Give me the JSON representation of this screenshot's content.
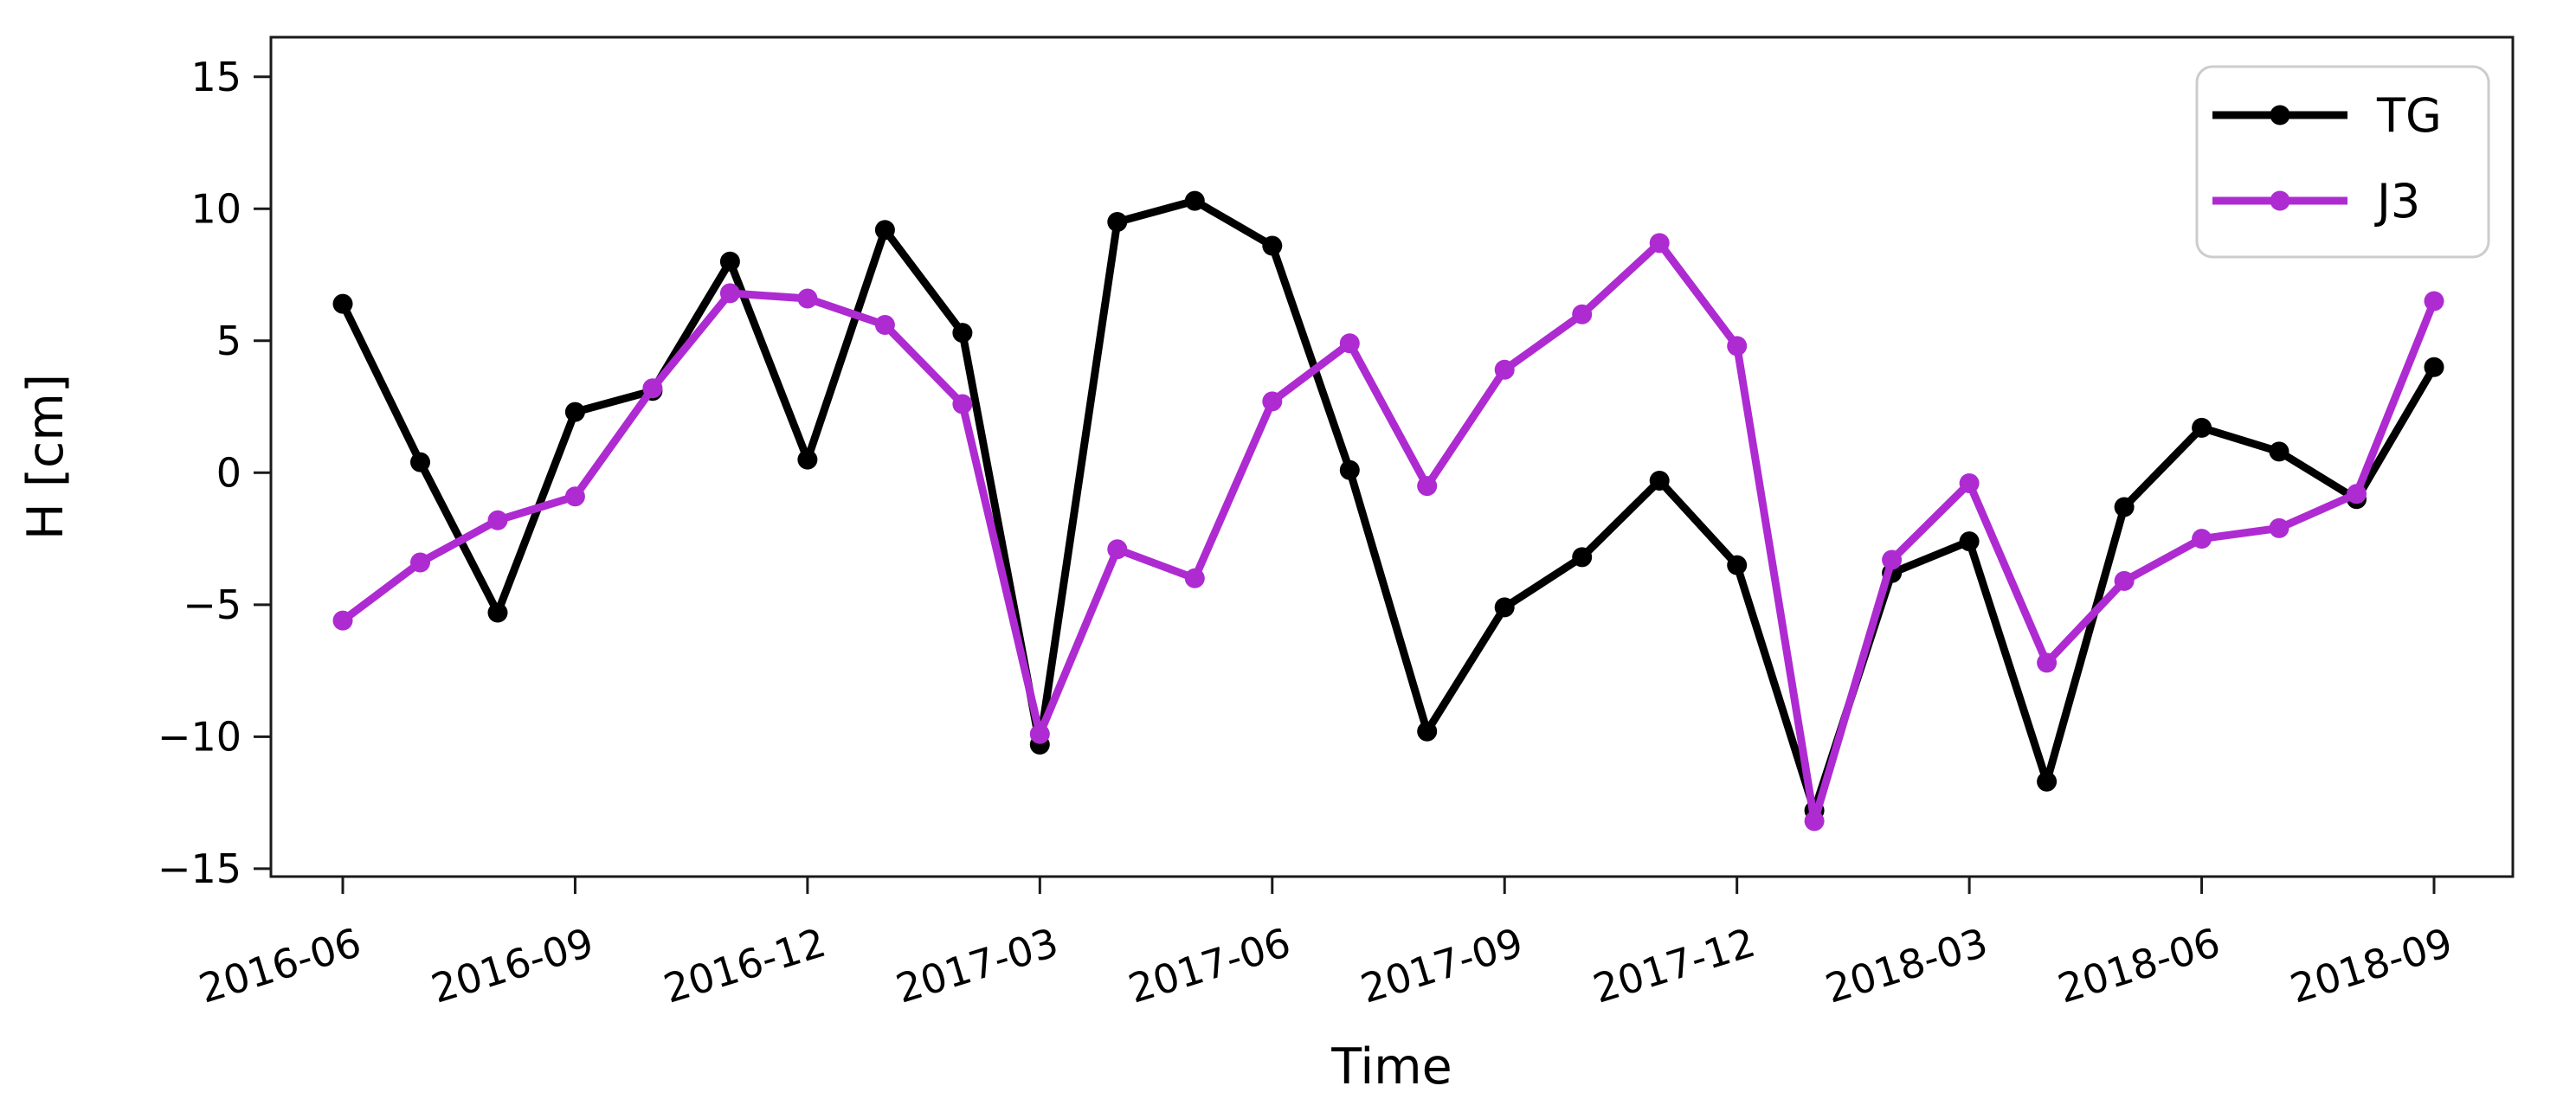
{
  "chart_data": {
    "type": "line",
    "title": "",
    "xlabel": "Time",
    "ylabel": "H [cm]",
    "grid": false,
    "legend_position": "upper right",
    "x": [
      "2016-06",
      "2016-07",
      "2016-08",
      "2016-09",
      "2016-10",
      "2016-11",
      "2016-12",
      "2017-01",
      "2017-02",
      "2017-03",
      "2017-04",
      "2017-05",
      "2017-06",
      "2017-07",
      "2017-08",
      "2017-09",
      "2017-10",
      "2017-11",
      "2017-12",
      "2018-01",
      "2018-02",
      "2018-03",
      "2018-04",
      "2018-05",
      "2018-06",
      "2018-07",
      "2018-08",
      "2018-09"
    ],
    "x_tick_labels": [
      "2016-06",
      "2016-09",
      "2016-12",
      "2017-03",
      "2017-06",
      "2017-09",
      "2017-12",
      "2018-03",
      "2018-06",
      "2018-09"
    ],
    "yticks": [
      15,
      10,
      5,
      0,
      -5,
      -10,
      -15
    ],
    "ylim": [
      -15.3,
      16.5
    ],
    "series": [
      {
        "name": "TG",
        "color": "#000000",
        "values": [
          6.4,
          0.4,
          -5.3,
          2.3,
          3.1,
          8.0,
          0.5,
          9.2,
          5.3,
          -10.3,
          9.5,
          10.3,
          8.6,
          0.1,
          -9.8,
          -5.1,
          -3.2,
          -0.3,
          -3.5,
          -12.8,
          -3.8,
          -2.6,
          -11.7,
          -1.3,
          1.7,
          0.8,
          -1.0,
          4.0
        ]
      },
      {
        "name": "J3",
        "color": "#AE2BD2",
        "values": [
          -5.6,
          -3.4,
          -1.8,
          -0.9,
          3.2,
          6.8,
          6.6,
          5.6,
          2.6,
          -9.9,
          -2.9,
          -4.0,
          2.7,
          4.9,
          -0.5,
          3.9,
          6.0,
          8.7,
          4.8,
          -13.2,
          -3.3,
          -0.4,
          -7.2,
          -4.1,
          -2.5,
          -2.1,
          -0.8,
          6.5
        ]
      }
    ],
    "frame_color": "#1a1a1a"
  }
}
